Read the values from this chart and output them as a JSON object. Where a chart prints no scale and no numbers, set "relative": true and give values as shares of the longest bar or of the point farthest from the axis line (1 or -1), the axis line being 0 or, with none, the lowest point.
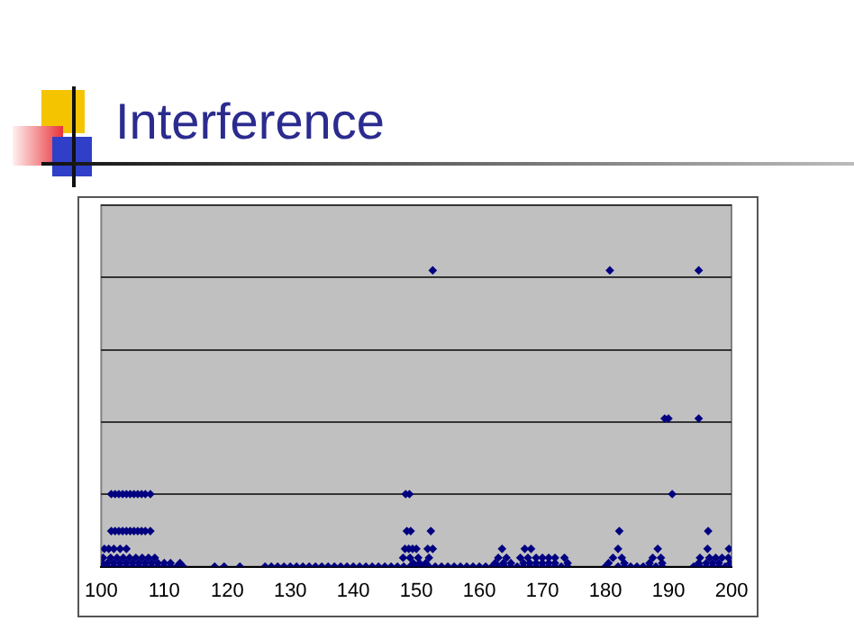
{
  "chart_data": {
    "type": "scatter",
    "title": "Interference",
    "relative": true,
    "grid": "y",
    "marker": "diamond",
    "color": "#000080",
    "xlim": [
      100,
      200
    ],
    "xticks": [
      100,
      110,
      120,
      130,
      140,
      150,
      160,
      170,
      180,
      190,
      200
    ],
    "x": [
      152.6,
      180.7,
      194.8,
      189.4,
      190,
      194.8,
      101.6,
      102.2,
      102.8,
      103.4,
      104,
      104.6,
      105.2,
      105.8,
      106.4,
      107,
      107.8,
      148.3,
      148.9,
      190.6,
      101.6,
      102.2,
      102.8,
      103.4,
      104,
      104.6,
      105.2,
      105.8,
      106.4,
      107,
      107.8,
      148.5,
      149.1,
      152.3,
      182.2,
      196.3,
      100.5,
      101.2,
      102,
      103,
      104,
      148.2,
      148.8,
      149.4,
      150,
      151.8,
      152.6,
      163.6,
      167.2,
      168.2,
      182,
      188.3,
      196.2,
      199.6,
      100.3,
      101.5,
      102.5,
      103.5,
      104.5,
      105.5,
      106.5,
      107.5,
      108.5,
      147.9,
      149,
      150.3,
      152,
      163,
      164.3,
      166.5,
      167.7,
      169,
      170,
      171,
      172,
      173.5,
      181.2,
      182.6,
      187.5,
      188.8,
      195,
      196.5,
      197.5,
      198.5,
      199.5,
      100.2,
      101,
      102,
      103,
      104,
      105,
      106,
      107,
      108,
      109,
      110,
      111,
      112.5,
      149.5,
      150.5,
      151.5,
      162.5,
      163.8,
      165,
      167,
      168,
      169,
      170,
      171,
      172,
      174,
      180.5,
      183,
      187,
      189,
      194.8,
      196,
      197,
      198,
      199.8,
      100,
      101,
      102,
      103,
      104,
      105,
      106,
      107,
      108,
      109,
      110,
      111,
      112,
      113,
      118,
      119.5,
      122,
      126,
      127,
      128,
      129,
      130,
      131,
      132,
      133,
      134,
      135,
      136,
      137,
      138,
      139,
      140,
      141,
      142,
      143,
      144,
      145,
      146,
      147,
      148,
      149,
      150,
      151,
      152,
      153,
      154,
      155,
      156,
      157,
      158,
      159,
      160,
      161,
      162,
      163,
      164,
      165,
      166,
      167,
      168,
      169,
      170,
      171,
      172,
      173,
      174,
      180,
      182,
      183,
      184,
      185,
      186,
      187,
      188,
      189,
      194,
      195,
      196,
      197,
      198,
      199,
      200
    ],
    "values": [
      1,
      1,
      1,
      0.5,
      0.5,
      0.5,
      0.245,
      0.245,
      0.245,
      0.245,
      0.245,
      0.245,
      0.245,
      0.245,
      0.245,
      0.245,
      0.245,
      0.245,
      0.245,
      0.245,
      0.12,
      0.12,
      0.12,
      0.12,
      0.12,
      0.12,
      0.12,
      0.12,
      0.12,
      0.12,
      0.12,
      0.12,
      0.12,
      0.12,
      0.12,
      0.12,
      0.06,
      0.06,
      0.06,
      0.06,
      0.06,
      0.06,
      0.06,
      0.06,
      0.06,
      0.06,
      0.06,
      0.06,
      0.06,
      0.06,
      0.06,
      0.06,
      0.06,
      0.06,
      0.03,
      0.03,
      0.03,
      0.03,
      0.03,
      0.03,
      0.03,
      0.03,
      0.03,
      0.03,
      0.03,
      0.03,
      0.03,
      0.03,
      0.03,
      0.03,
      0.03,
      0.03,
      0.03,
      0.03,
      0.03,
      0.03,
      0.03,
      0.03,
      0.03,
      0.03,
      0.03,
      0.03,
      0.03,
      0.03,
      0.03,
      0.012,
      0.012,
      0.012,
      0.012,
      0.012,
      0.012,
      0.012,
      0.012,
      0.012,
      0.012,
      0.012,
      0.012,
      0.012,
      0.012,
      0.012,
      0.012,
      0.012,
      0.012,
      0.012,
      0.012,
      0.012,
      0.012,
      0.012,
      0.012,
      0.012,
      0.012,
      0.012,
      0.012,
      0.012,
      0.012,
      0.012,
      0.012,
      0.012,
      0.012,
      0.012,
      0,
      0,
      0,
      0,
      0,
      0,
      0,
      0,
      0,
      0,
      0,
      0,
      0,
      0,
      0,
      0,
      0,
      0,
      0,
      0,
      0,
      0,
      0,
      0,
      0,
      0,
      0,
      0,
      0,
      0,
      0,
      0,
      0,
      0,
      0,
      0,
      0,
      0,
      0,
      0,
      0,
      0,
      0,
      0,
      0,
      0,
      0,
      0,
      0,
      0,
      0,
      0,
      0,
      0,
      0,
      0,
      0,
      0,
      0,
      0,
      0,
      0,
      0,
      0,
      0,
      0,
      0,
      0,
      0,
      0,
      0,
      0,
      0,
      0,
      0,
      0,
      0,
      0,
      0,
      0,
      0,
      0
    ]
  }
}
